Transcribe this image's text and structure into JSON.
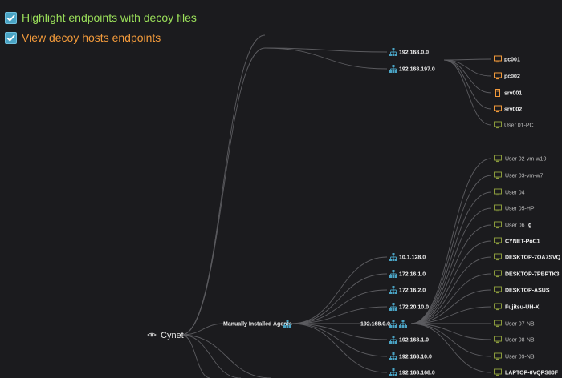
{
  "options": {
    "highlight_label": "Highlight endpoints with decoy files",
    "view_decoy_label": "View decoy hosts endpoints",
    "highlight_checked": true,
    "view_decoy_checked": true
  },
  "colors": {
    "background": "#1b1b1e",
    "link": "#5c5c60",
    "highlight_green": "#9be05a",
    "decoy_orange": "#f29a3b",
    "network_blue": "#4aa3c4",
    "endpoint_olive": "#8a9a3c"
  },
  "tree": {
    "root": {
      "label": "Cynet",
      "icon": "eye-icon"
    },
    "groups": [
      {
        "label": "Manually Installed Agents",
        "icon": "network-icon"
      }
    ],
    "networks_top": [
      {
        "label": "192.168.0.0",
        "icon": "network-icon"
      },
      {
        "label": "192.168.197.0",
        "icon": "network-icon"
      }
    ],
    "decoy_hosts": [
      {
        "label": "pc001",
        "icon": "monitor-icon",
        "decoy": true
      },
      {
        "label": "pc002",
        "icon": "monitor-icon",
        "decoy": true
      },
      {
        "label": "srv001",
        "icon": "server-icon",
        "decoy": true
      },
      {
        "label": "srv002",
        "icon": "monitor-icon",
        "decoy": true
      },
      {
        "label": "User 01-PC",
        "icon": "monitor-icon",
        "decoy": false
      }
    ],
    "networks_agents": [
      {
        "label": "10.1.128.0",
        "icon": "network-icon"
      },
      {
        "label": "172.16.1.0",
        "icon": "network-icon"
      },
      {
        "label": "172.16.2.0",
        "icon": "network-icon"
      },
      {
        "label": "172.20.10.0",
        "icon": "network-icon"
      },
      {
        "label": "192.168.0.0",
        "icon": "network-icon"
      },
      {
        "label": "192.168.1.0",
        "icon": "network-icon"
      },
      {
        "label": "192.168.10.0",
        "icon": "network-icon"
      },
      {
        "label": "192.168.168.0",
        "icon": "network-icon"
      }
    ],
    "endpoints": [
      {
        "label": "User 02-vm-w10",
        "icon": "monitor-icon"
      },
      {
        "label": "User 03-vm-w7",
        "icon": "monitor-icon"
      },
      {
        "label": "User 04",
        "icon": "monitor-icon"
      },
      {
        "label": "User 05-HP",
        "icon": "monitor-icon"
      },
      {
        "label": "User 06",
        "icon": "monitor-icon"
      },
      {
        "label": "CYNET-PoC1",
        "icon": "monitor-icon"
      },
      {
        "label": "DESKTOP-7OA7SVQ",
        "icon": "monitor-icon"
      },
      {
        "label": "DESKTOP-7PBPTK3",
        "icon": "monitor-icon"
      },
      {
        "label": "DESKTOP-ASUS",
        "icon": "monitor-icon"
      },
      {
        "label": "Fujitsu-UH-X",
        "icon": "monitor-icon"
      },
      {
        "label": "User 07-NB",
        "icon": "monitor-icon"
      },
      {
        "label": "User 08-NB",
        "icon": "monitor-icon"
      },
      {
        "label": "User 09-NB",
        "icon": "monitor-icon"
      },
      {
        "label": "LAPTOP-0VQPS80F",
        "icon": "monitor-icon"
      }
    ],
    "cursor_glyph": "g"
  }
}
